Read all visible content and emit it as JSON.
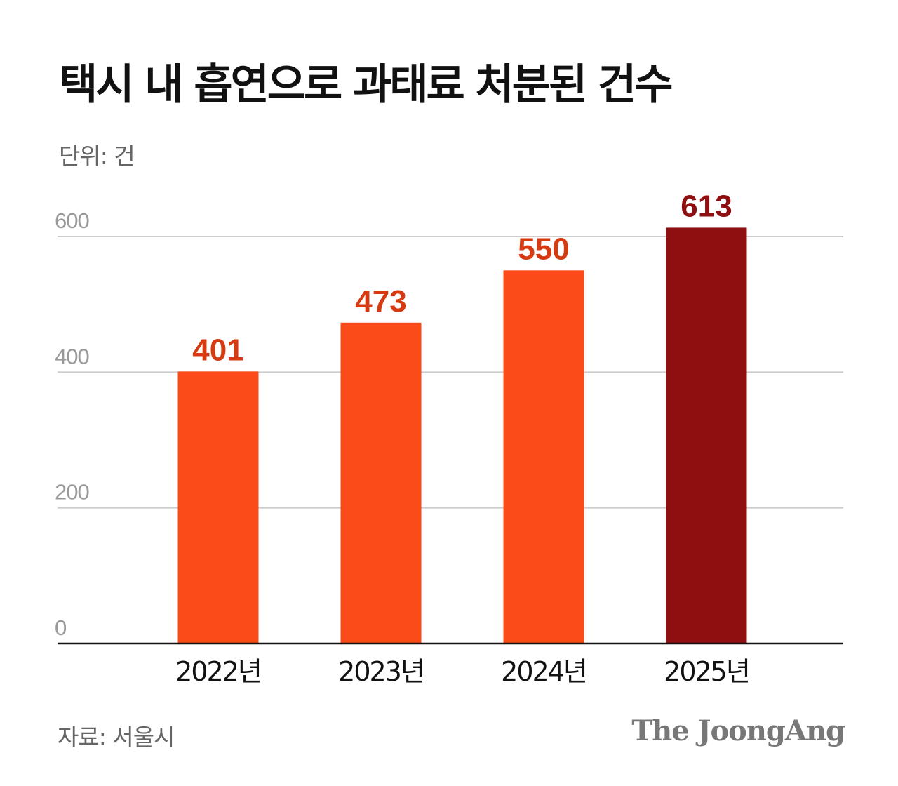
{
  "title": "택시 내 흡연으로 과태료 처분된 건수",
  "unit_label": "단위: 건",
  "source": "자료: 서울시",
  "logo": "The JoongAng",
  "colors": {
    "bar": "#fa4b18",
    "bar_highlight": "#8f0f10",
    "label": "#d63a10",
    "label_highlight": "#8f0f10",
    "grid": "#cccccc",
    "axis": "#111111",
    "tick": "#999999"
  },
  "chart_data": {
    "type": "bar",
    "categories": [
      "2022년",
      "2023년",
      "2024년",
      "2025년"
    ],
    "values": [
      401,
      473,
      550,
      613
    ],
    "data_labels": [
      "401",
      "473",
      "550",
      "613"
    ],
    "highlight_index": 3,
    "ylim": [
      0,
      600
    ],
    "yticks": [
      0,
      200,
      400,
      600
    ],
    "ytick_labels": [
      "0",
      "200",
      "400",
      "600"
    ],
    "grid": true,
    "xlabel": "",
    "ylabel": ""
  }
}
